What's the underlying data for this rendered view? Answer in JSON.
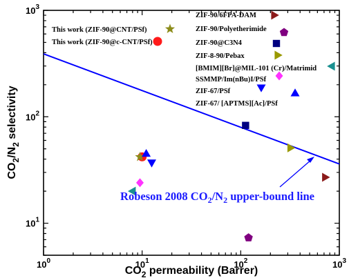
{
  "chart_data": {
    "type": "scatter",
    "xscale": "log",
    "yscale": "log",
    "xlim": [
      1,
      1000
    ],
    "ylim": [
      5,
      1000
    ],
    "xlabel": "CO2 permeability (Barrer)",
    "ylabel": "CO2/N2 selectivity",
    "x_ticks": [
      "10^0",
      "10^1",
      "10^2",
      "10^3"
    ],
    "y_ticks": [
      "10^1",
      "10^2",
      "10^3"
    ],
    "grid": false,
    "legend_position": "top (two columns)",
    "upper_bound": {
      "label": "Robeson 2008 CO2/N2 upper-bound line",
      "color": "#0000ff",
      "points": [
        [
          1,
          390
        ],
        [
          1000,
          36
        ]
      ]
    },
    "series": [
      {
        "name": "This work (ZIF-90@CNT/PSf)",
        "marker": "star",
        "color": "#8c8c1a",
        "points": [
          [
            9.5,
            42
          ]
        ]
      },
      {
        "name": "This work (ZIF-90@c-CNT/PSf)",
        "marker": "circle",
        "color": "#ff1a1a",
        "points": [
          [
            10,
            42
          ]
        ]
      },
      {
        "name": "ZIF-90/6FPA-DAM",
        "marker": "triangle-right",
        "color": "#8b1a1a",
        "points": [
          [
            720,
            27
          ]
        ]
      },
      {
        "name": "ZIF-90/Polyetherimide",
        "marker": "pentagon",
        "color": "#800080",
        "points": [
          [
            120,
            7.3
          ]
        ]
      },
      {
        "name": "ZIF-90@C3N4",
        "marker": "square",
        "color": "#000080",
        "points": [
          [
            112,
            83
          ]
        ]
      },
      {
        "name": "ZIF-8-90/Pebax",
        "marker": "triangle-right",
        "color": "#999900",
        "points": [
          [
            320,
            51
          ]
        ]
      },
      {
        "name": "[BMIM][Br]@MIL-101 (Cr)/Matrimid",
        "marker": "triangle-left",
        "color": "#1a9090",
        "points": [
          [
            8,
            20
          ]
        ]
      },
      {
        "name": "SSMMP/Im(nBu)I/PSf",
        "marker": "diamond",
        "color": "#ff33ff",
        "points": [
          [
            9.5,
            24
          ]
        ]
      },
      {
        "name": "ZIF-67/PSf",
        "marker": "triangle-down",
        "color": "#0000ff",
        "points": [
          [
            12.5,
            37
          ]
        ]
      },
      {
        "name": "ZIF-67/ [APTMS][Ac]/PSf",
        "marker": "triangle-up",
        "color": "#0000ff",
        "points": [
          [
            11,
            45
          ]
        ]
      }
    ]
  }
}
